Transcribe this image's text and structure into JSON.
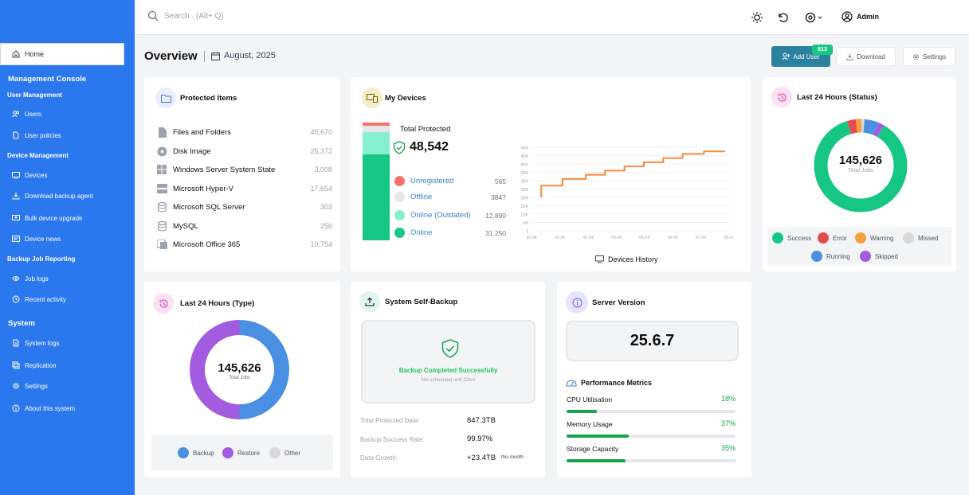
{
  "search": {
    "placeholder": "Search.. (Alt+ Q)"
  },
  "user": {
    "name": "Admin"
  },
  "sidebar": {
    "home": "Home",
    "console_title": "Management Console",
    "sections": [
      {
        "title": "User Management",
        "items": [
          "Users",
          "User policies"
        ]
      },
      {
        "title": "Device Management",
        "items": [
          "Devices",
          "Download backup agent",
          "Bulk device upgrade",
          "Device news"
        ]
      },
      {
        "title": "Backup Job Reporting",
        "items": [
          "Job logs",
          "Recent activity"
        ]
      },
      {
        "title": "System",
        "items": [
          "System logs",
          "Replication",
          "Settings",
          "About this system"
        ]
      }
    ]
  },
  "overview": {
    "title": "Overview",
    "date": "August, 2025"
  },
  "actions": {
    "add_user": "Add User",
    "badge": "813",
    "download": "Download",
    "settings": "Settings"
  },
  "protected_items": {
    "title": "Protected Items",
    "items": [
      {
        "label": "Files and Folders",
        "value": "45,670"
      },
      {
        "label": "Disk Image",
        "value": "25,372"
      },
      {
        "label": "Windows Server System State",
        "value": "3,008"
      },
      {
        "label": "Microsoft Hyper-V",
        "value": "17,654"
      },
      {
        "label": "Microsoft SQL Server",
        "value": "303"
      },
      {
        "label": "MySQL",
        "value": "256"
      },
      {
        "label": "Microsoft Office 365",
        "value": "10,754"
      }
    ]
  },
  "my_devices": {
    "title": "My Devices",
    "total_label": "Total Protected",
    "total": "48,542",
    "rows": [
      {
        "label": "Unregistered",
        "value": "565",
        "color": "#f87171"
      },
      {
        "label": "Offline",
        "value": "3847",
        "color": "#e5e7eb"
      },
      {
        "label": "Online (Outdated)",
        "value": "12,890",
        "color": "#86efcf"
      },
      {
        "label": "Online",
        "value": "31,250",
        "color": "#16c784"
      }
    ],
    "history_label": "Devices History"
  },
  "chart_data": {
    "type": "line",
    "title": "Devices History",
    "x": [
      "01-24",
      "02-24",
      "03-24",
      "04-24",
      "05-24",
      "06-24",
      "07-24",
      "08-24"
    ],
    "y_ticks": [
      "0",
      "5K",
      "10K",
      "15K",
      "20K",
      "25K",
      "30K",
      "35K",
      "40K",
      "45K",
      "50K"
    ],
    "ylim": [
      0,
      50000
    ],
    "series": [
      {
        "values": [
          [
            0.5,
            20000
          ],
          [
            0.5,
            27000
          ],
          [
            1.6,
            27000
          ],
          [
            1.6,
            31000
          ],
          [
            2.8,
            31000
          ],
          [
            2.8,
            33500
          ],
          [
            3.8,
            33500
          ],
          [
            3.8,
            36000
          ],
          [
            4.8,
            36000
          ],
          [
            4.8,
            38500
          ],
          [
            5.8,
            38500
          ],
          [
            5.8,
            41000
          ],
          [
            6.8,
            41000
          ],
          [
            6.8,
            43500
          ],
          [
            7.8,
            43500
          ],
          [
            7.8,
            46000
          ],
          [
            8.9,
            46000
          ],
          [
            8.9,
            47500
          ],
          [
            10,
            47500
          ]
        ],
        "color": "#f58b3c"
      }
    ],
    "grid": true
  },
  "status24": {
    "title": "Last 24 Hours (Status)",
    "total": "145,626",
    "sub": "Total Jobs",
    "legend": [
      {
        "label": "Success",
        "color": "#16c784",
        "pct": 87
      },
      {
        "label": "Error",
        "color": "#e24c4c",
        "pct": 3
      },
      {
        "label": "Warning",
        "color": "#f59e42",
        "pct": 2
      },
      {
        "label": "Missed",
        "color": "#d9d9d9",
        "pct": 1
      },
      {
        "label": "Running",
        "color": "#4a90e2",
        "pct": 5
      },
      {
        "label": "Skipped",
        "color": "#a35ce0",
        "pct": 2
      }
    ]
  },
  "type24": {
    "title": "Last 24 Hours (Type)",
    "total": "145,626",
    "sub": "Total Jobs",
    "legend": [
      {
        "label": "Backup",
        "color": "#4a90e2",
        "pct": 50
      },
      {
        "label": "Restore",
        "color": "#a35ce0",
        "pct": 50
      },
      {
        "label": "Other",
        "color": "#d9d9d9",
        "pct": 0
      }
    ]
  },
  "self_backup": {
    "title": "System Self-Backup",
    "status": "Backup Completed Successfully",
    "next": "Not scheduled until 22hrs",
    "stats": [
      {
        "label": "Total Protected Data:",
        "value": "847.3TB",
        "note": ""
      },
      {
        "label": "Backup Success Rate:",
        "value": "99.97%",
        "note": ""
      },
      {
        "label": "Data Growth:",
        "value": "+23.4TB",
        "note": "this month"
      }
    ]
  },
  "server": {
    "title": "Server Version",
    "version": "25.6.7",
    "perf_title": "Performance Metrics",
    "metrics": [
      {
        "label": "CPU Utilisation",
        "value": "18%",
        "pct": 18
      },
      {
        "label": "Memory Usage",
        "value": "37%",
        "pct": 37
      },
      {
        "label": "Storage Capacity",
        "value": "35%",
        "pct": 35
      }
    ]
  }
}
